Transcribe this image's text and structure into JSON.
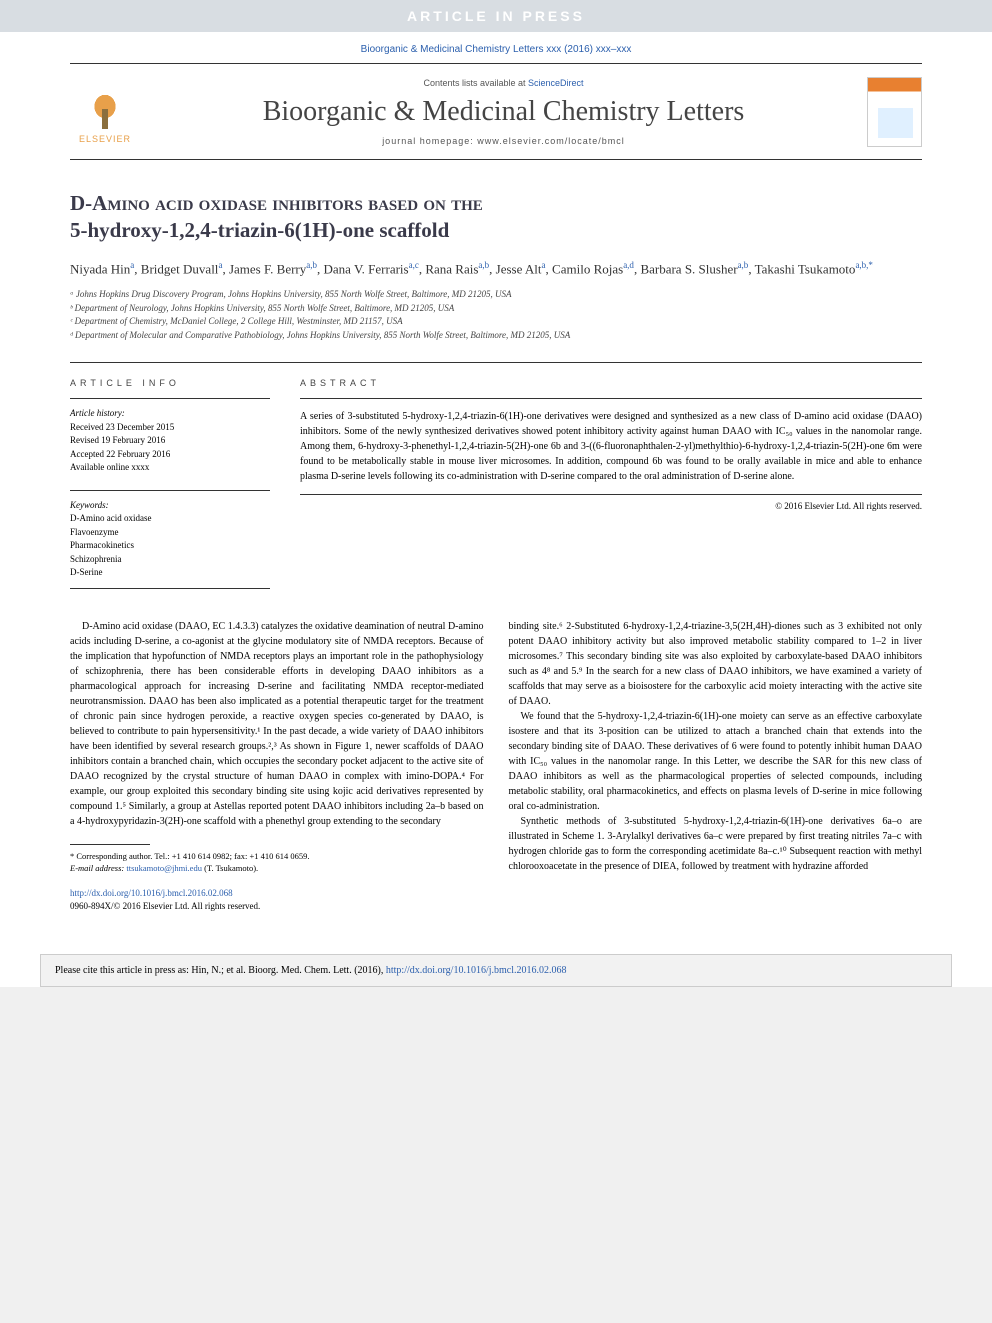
{
  "banner": "ARTICLE IN PRESS",
  "citation": "Bioorganic & Medicinal Chemistry Letters xxx (2016) xxx–xxx",
  "masthead": {
    "contents_prefix": "Contents lists available at ",
    "contents_link": "ScienceDirect",
    "journal": "Bioorganic & Medicinal Chemistry Letters",
    "homepage_prefix": "journal homepage: ",
    "homepage_url": "www.elsevier.com/locate/bmcl",
    "elsevier": "ELSEVIER"
  },
  "title_line1": "D-Amino acid oxidase inhibitors based on the",
  "title_line2": "5-hydroxy-1,2,4-triazin-6(1H)-one scaffold",
  "authors_html": "Niyada Hin<sup>a</sup>, Bridget Duvall<sup>a</sup>, James F. Berry<sup>a,b</sup>, Dana V. Ferraris<sup>a,c</sup>, Rana Rais<sup>a,b</sup>, Jesse Alt<sup>a</sup>, Camilo Rojas<sup>a,d</sup>, Barbara S. Slusher<sup>a,b</sup>, Takashi Tsukamoto<sup>a,b,*</sup>",
  "affiliations": [
    "ᵃ Johns Hopkins Drug Discovery Program, Johns Hopkins University, 855 North Wolfe Street, Baltimore, MD 21205, USA",
    "ᵇ Department of Neurology, Johns Hopkins University, 855 North Wolfe Street, Baltimore, MD 21205, USA",
    "ᶜ Department of Chemistry, McDaniel College, 2 College Hill, Westminster, MD 21157, USA",
    "ᵈ Department of Molecular and Comparative Pathobiology, Johns Hopkins University, 855 North Wolfe Street, Baltimore, MD 21205, USA"
  ],
  "info_heading": "ARTICLE INFO",
  "abstract_heading": "ABSTRACT",
  "history": {
    "label": "Article history:",
    "received": "Received 23 December 2015",
    "revised": "Revised 19 February 2016",
    "accepted": "Accepted 22 February 2016",
    "online": "Available online xxxx"
  },
  "keywords": {
    "label": "Keywords:",
    "items": [
      "D-Amino acid oxidase",
      "Flavoenzyme",
      "Pharmacokinetics",
      "Schizophrenia",
      "D-Serine"
    ]
  },
  "abstract": "A series of 3-substituted 5-hydroxy-1,2,4-triazin-6(1H)-one derivatives were designed and synthesized as a new class of D-amino acid oxidase (DAAO) inhibitors. Some of the newly synthesized derivatives showed potent inhibitory activity against human DAAO with IC₅₀ values in the nanomolar range. Among them, 6-hydroxy-3-phenethyl-1,2,4-triazin-5(2H)-one 6b and 3-((6-fluoronaphthalen-2-yl)methylthio)-6-hydroxy-1,2,4-triazin-5(2H)-one 6m were found to be metabolically stable in mouse liver microsomes. In addition, compound 6b was found to be orally available in mice and able to enhance plasma D-serine levels following its co-administration with D-serine compared to the oral administration of D-serine alone.",
  "copyright": "© 2016 Elsevier Ltd. All rights reserved.",
  "body": {
    "col1p1": "D-Amino acid oxidase (DAAO, EC 1.4.3.3) catalyzes the oxidative deamination of neutral D-amino acids including D-serine, a co-agonist at the glycine modulatory site of NMDA receptors. Because of the implication that hypofunction of NMDA receptors plays an important role in the pathophysiology of schizophrenia, there has been considerable efforts in developing DAAO inhibitors as a pharmacological approach for increasing D-serine and facilitating NMDA receptor-mediated neurotransmission. DAAO has been also implicated as a potential therapeutic target for the treatment of chronic pain since hydrogen peroxide, a reactive oxygen species co-generated by DAAO, is believed to contribute to pain hypersensitivity.¹ In the past decade, a wide variety of DAAO inhibitors have been identified by several research groups.²,³ As shown in Figure 1, newer scaffolds of DAAO inhibitors contain a branched chain, which occupies the secondary pocket adjacent to the active site of DAAO recognized by the crystal structure of human DAAO in complex with imino-DOPA.⁴ For example, our group exploited this secondary binding site using kojic acid derivatives represented by compound 1.⁵ Similarly, a group at Astellas reported potent DAAO inhibitors including 2a–b based on a 4-hydroxypyridazin-3(2H)-one scaffold with a phenethyl group extending to the secondary",
    "col2p1": "binding site.⁶ 2-Substituted 6-hydroxy-1,2,4-triazine-3,5(2H,4H)-diones such as 3 exhibited not only potent DAAO inhibitory activity but also improved metabolic stability compared to 1–2 in liver microsomes.⁷ This secondary binding site was also exploited by carboxylate-based DAAO inhibitors such as 4⁸ and 5.⁹ In the search for a new class of DAAO inhibitors, we have examined a variety of scaffolds that may serve as a bioisostere for the carboxylic acid moiety interacting with the active site of DAAO.",
    "col2p2": "We found that the 5-hydroxy-1,2,4-triazin-6(1H)-one moiety can serve as an effective carboxylate isostere and that its 3-position can be utilized to attach a branched chain that extends into the secondary binding site of DAAO. These derivatives of 6 were found to potently inhibit human DAAO with IC₅₀ values in the nanomolar range. In this Letter, we describe the SAR for this new class of DAAO inhibitors as well as the pharmacological properties of selected compounds, including metabolic stability, oral pharmacokinetics, and effects on plasma levels of D-serine in mice following oral co-administration.",
    "col2p3": "Synthetic methods of 3-substituted 5-hydroxy-1,2,4-triazin-6(1H)-one derivatives 6a–o are illustrated in Scheme 1. 3-Arylalkyl derivatives 6a–c were prepared by first treating nitriles 7a–c with hydrogen chloride gas to form the corresponding acetimidate 8a–c.¹⁰ Subsequent reaction with methyl chlorooxoacetate in the presence of DIEA, followed by treatment with hydrazine afforded"
  },
  "footnotes": {
    "corr": "* Corresponding author. Tel.: +1 410 614 0982; fax: +1 410 614 0659.",
    "email_label": "E-mail address: ",
    "email": "ttsukamoto@jhmi.edu",
    "email_suffix": " (T. Tsukamoto)."
  },
  "doi": {
    "url": "http://dx.doi.org/10.1016/j.bmcl.2016.02.068",
    "line2": "0960-894X/© 2016 Elsevier Ltd. All rights reserved."
  },
  "cite_footer": {
    "prefix": "Please cite this article in press as: Hin, N.; et al. Bioorg. Med. Chem. Lett. (2016), ",
    "url": "http://dx.doi.org/10.1016/j.bmcl.2016.02.068"
  }
}
